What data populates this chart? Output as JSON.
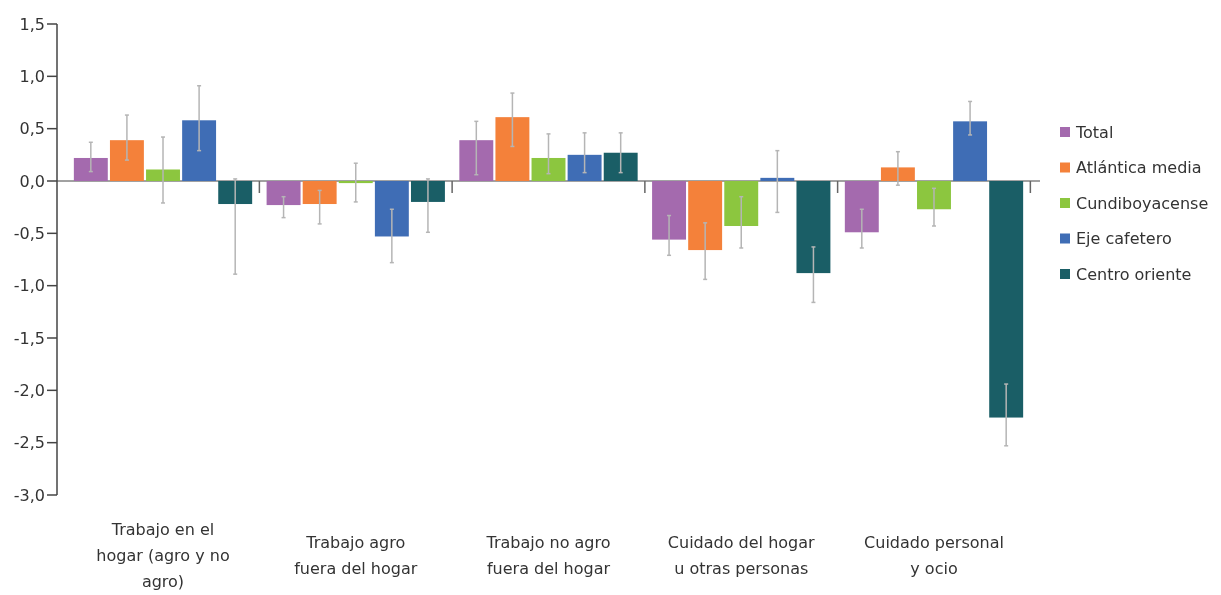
{
  "chart_data": {
    "type": "bar",
    "categories": [
      "Trabajo en el hogar (agro y no agro)",
      "Trabajo agro fuera del hogar",
      "Trabajo no agro fuera del hogar",
      "Cuidado del hogar u otras personas",
      "Cuidado personal y ocio"
    ],
    "series": [
      {
        "name": "Total",
        "color": "#a46aae",
        "values": [
          0.22,
          -0.23,
          0.39,
          -0.56,
          -0.49
        ],
        "errors": [
          [
            0.09,
            0.37
          ],
          [
            -0.35,
            -0.15
          ],
          [
            0.06,
            0.57
          ],
          [
            -0.71,
            -0.33
          ],
          [
            -0.64,
            -0.27
          ]
        ]
      },
      {
        "name": "Atlántica media",
        "color": "#f4813a",
        "values": [
          0.39,
          -0.22,
          0.61,
          -0.66,
          0.13
        ],
        "errors": [
          [
            0.2,
            0.63
          ],
          [
            -0.41,
            -0.09
          ],
          [
            0.33,
            0.84
          ],
          [
            -0.94,
            -0.4
          ],
          [
            -0.04,
            0.28
          ]
        ]
      },
      {
        "name": "Cundiboyacense",
        "color": "#8cc63f",
        "values": [
          0.11,
          -0.02,
          0.22,
          -0.43,
          -0.27
        ],
        "errors": [
          [
            -0.21,
            0.42
          ],
          [
            -0.2,
            0.17
          ],
          [
            0.07,
            0.45
          ],
          [
            -0.64,
            -0.15
          ],
          [
            -0.43,
            -0.07
          ]
        ]
      },
      {
        "name": "Eje cafetero",
        "color": "#3f6db5",
        "values": [
          0.58,
          -0.53,
          0.25,
          0.03,
          0.57
        ],
        "errors": [
          [
            0.29,
            0.91
          ],
          [
            -0.78,
            -0.27
          ],
          [
            0.08,
            0.46
          ],
          [
            -0.3,
            0.29
          ],
          [
            0.44,
            0.76
          ]
        ]
      },
      {
        "name": "Centro oriente",
        "color": "#1a5e66",
        "values": [
          -0.22,
          -0.2,
          0.27,
          -0.88,
          -2.26
        ],
        "errors": [
          [
            -0.89,
            0.02
          ],
          [
            -0.49,
            0.02
          ],
          [
            0.08,
            0.46
          ],
          [
            -1.16,
            -0.63
          ],
          [
            -2.53,
            -1.94
          ]
        ]
      }
    ],
    "ylim": [
      -3.0,
      1.5
    ],
    "yticks": [
      {
        "value": -3,
        "label": "-3,0"
      },
      {
        "value": -2.5,
        "label": "-2,5"
      },
      {
        "value": -2,
        "label": "-2,0"
      },
      {
        "value": -1.5,
        "label": "-1,5"
      },
      {
        "value": -1,
        "label": "-1,0"
      },
      {
        "value": -0.5,
        "label": "-0,5"
      },
      {
        "value": 0,
        "label": "0,0"
      },
      {
        "value": 0.5,
        "label": "0,5"
      },
      {
        "value": 1,
        "label": "1,0"
      },
      {
        "value": 1.5,
        "label": "1,5"
      }
    ],
    "legend": "right"
  }
}
